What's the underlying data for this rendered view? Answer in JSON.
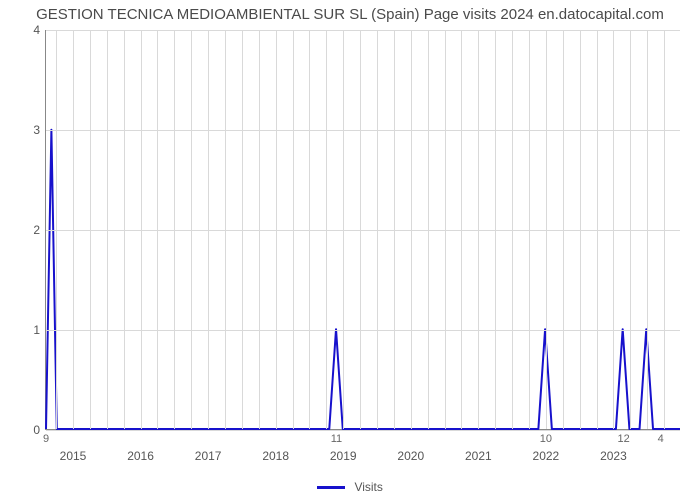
{
  "chart": {
    "type": "line",
    "title": "GESTION TECNICA MEDIOAMBIENTAL SUR SL (Spain) Page visits 2024 en.datocapital.com",
    "title_fontsize": 15,
    "title_color": "#4a4a4a",
    "background_color": "#ffffff",
    "grid_color": "#d9d9d9",
    "axis_color": "#888888",
    "line_color": "#1711cc",
    "line_width": 2,
    "ylim": [
      0,
      4
    ],
    "yticks": [
      0,
      1,
      2,
      3,
      4
    ],
    "ytick_fontsize": 12,
    "ytick_color": "#555555",
    "x_domain": [
      2014.6,
      2024.0
    ],
    "xticks": [
      2015,
      2016,
      2017,
      2018,
      2019,
      2020,
      2021,
      2022,
      2023
    ],
    "x_minor_gridlines": [
      2014.75,
      2015.25,
      2015.5,
      2015.75,
      2016.25,
      2016.5,
      2016.75,
      2017.25,
      2017.5,
      2017.75,
      2018.25,
      2018.5,
      2018.75,
      2019.25,
      2019.5,
      2019.75,
      2020.25,
      2020.5,
      2020.75,
      2021.25,
      2021.5,
      2021.75,
      2022.25,
      2022.5,
      2022.75,
      2023.25,
      2023.5,
      2023.75
    ],
    "xtick_fontsize": 12,
    "xtick_color": "#555555",
    "series": {
      "name": "Visits",
      "points": [
        [
          2014.6,
          0.0
        ],
        [
          2014.68,
          3.0
        ],
        [
          2014.76,
          0.0
        ],
        [
          2018.8,
          0.0
        ],
        [
          2018.9,
          1.0
        ],
        [
          2019.0,
          0.0
        ],
        [
          2021.9,
          0.0
        ],
        [
          2022.0,
          1.0
        ],
        [
          2022.1,
          0.0
        ],
        [
          2023.05,
          0.0
        ],
        [
          2023.15,
          1.0
        ],
        [
          2023.25,
          0.0
        ],
        [
          2023.4,
          0.0
        ],
        [
          2023.5,
          1.0
        ],
        [
          2023.6,
          0.0
        ],
        [
          2024.0,
          0.0
        ]
      ]
    },
    "data_labels": [
      {
        "x": 2014.6,
        "y": 0,
        "text": "9"
      },
      {
        "x": 2018.9,
        "y": 0,
        "text": "11"
      },
      {
        "x": 2022.0,
        "y": 0,
        "text": "10"
      },
      {
        "x": 2023.15,
        "y": 0,
        "text": "12"
      },
      {
        "x": 2023.7,
        "y": 0,
        "text": "4"
      }
    ],
    "legend": {
      "label": "Visits",
      "swatch_color": "#1711cc",
      "fontsize": 12,
      "text_color": "#555555"
    }
  }
}
